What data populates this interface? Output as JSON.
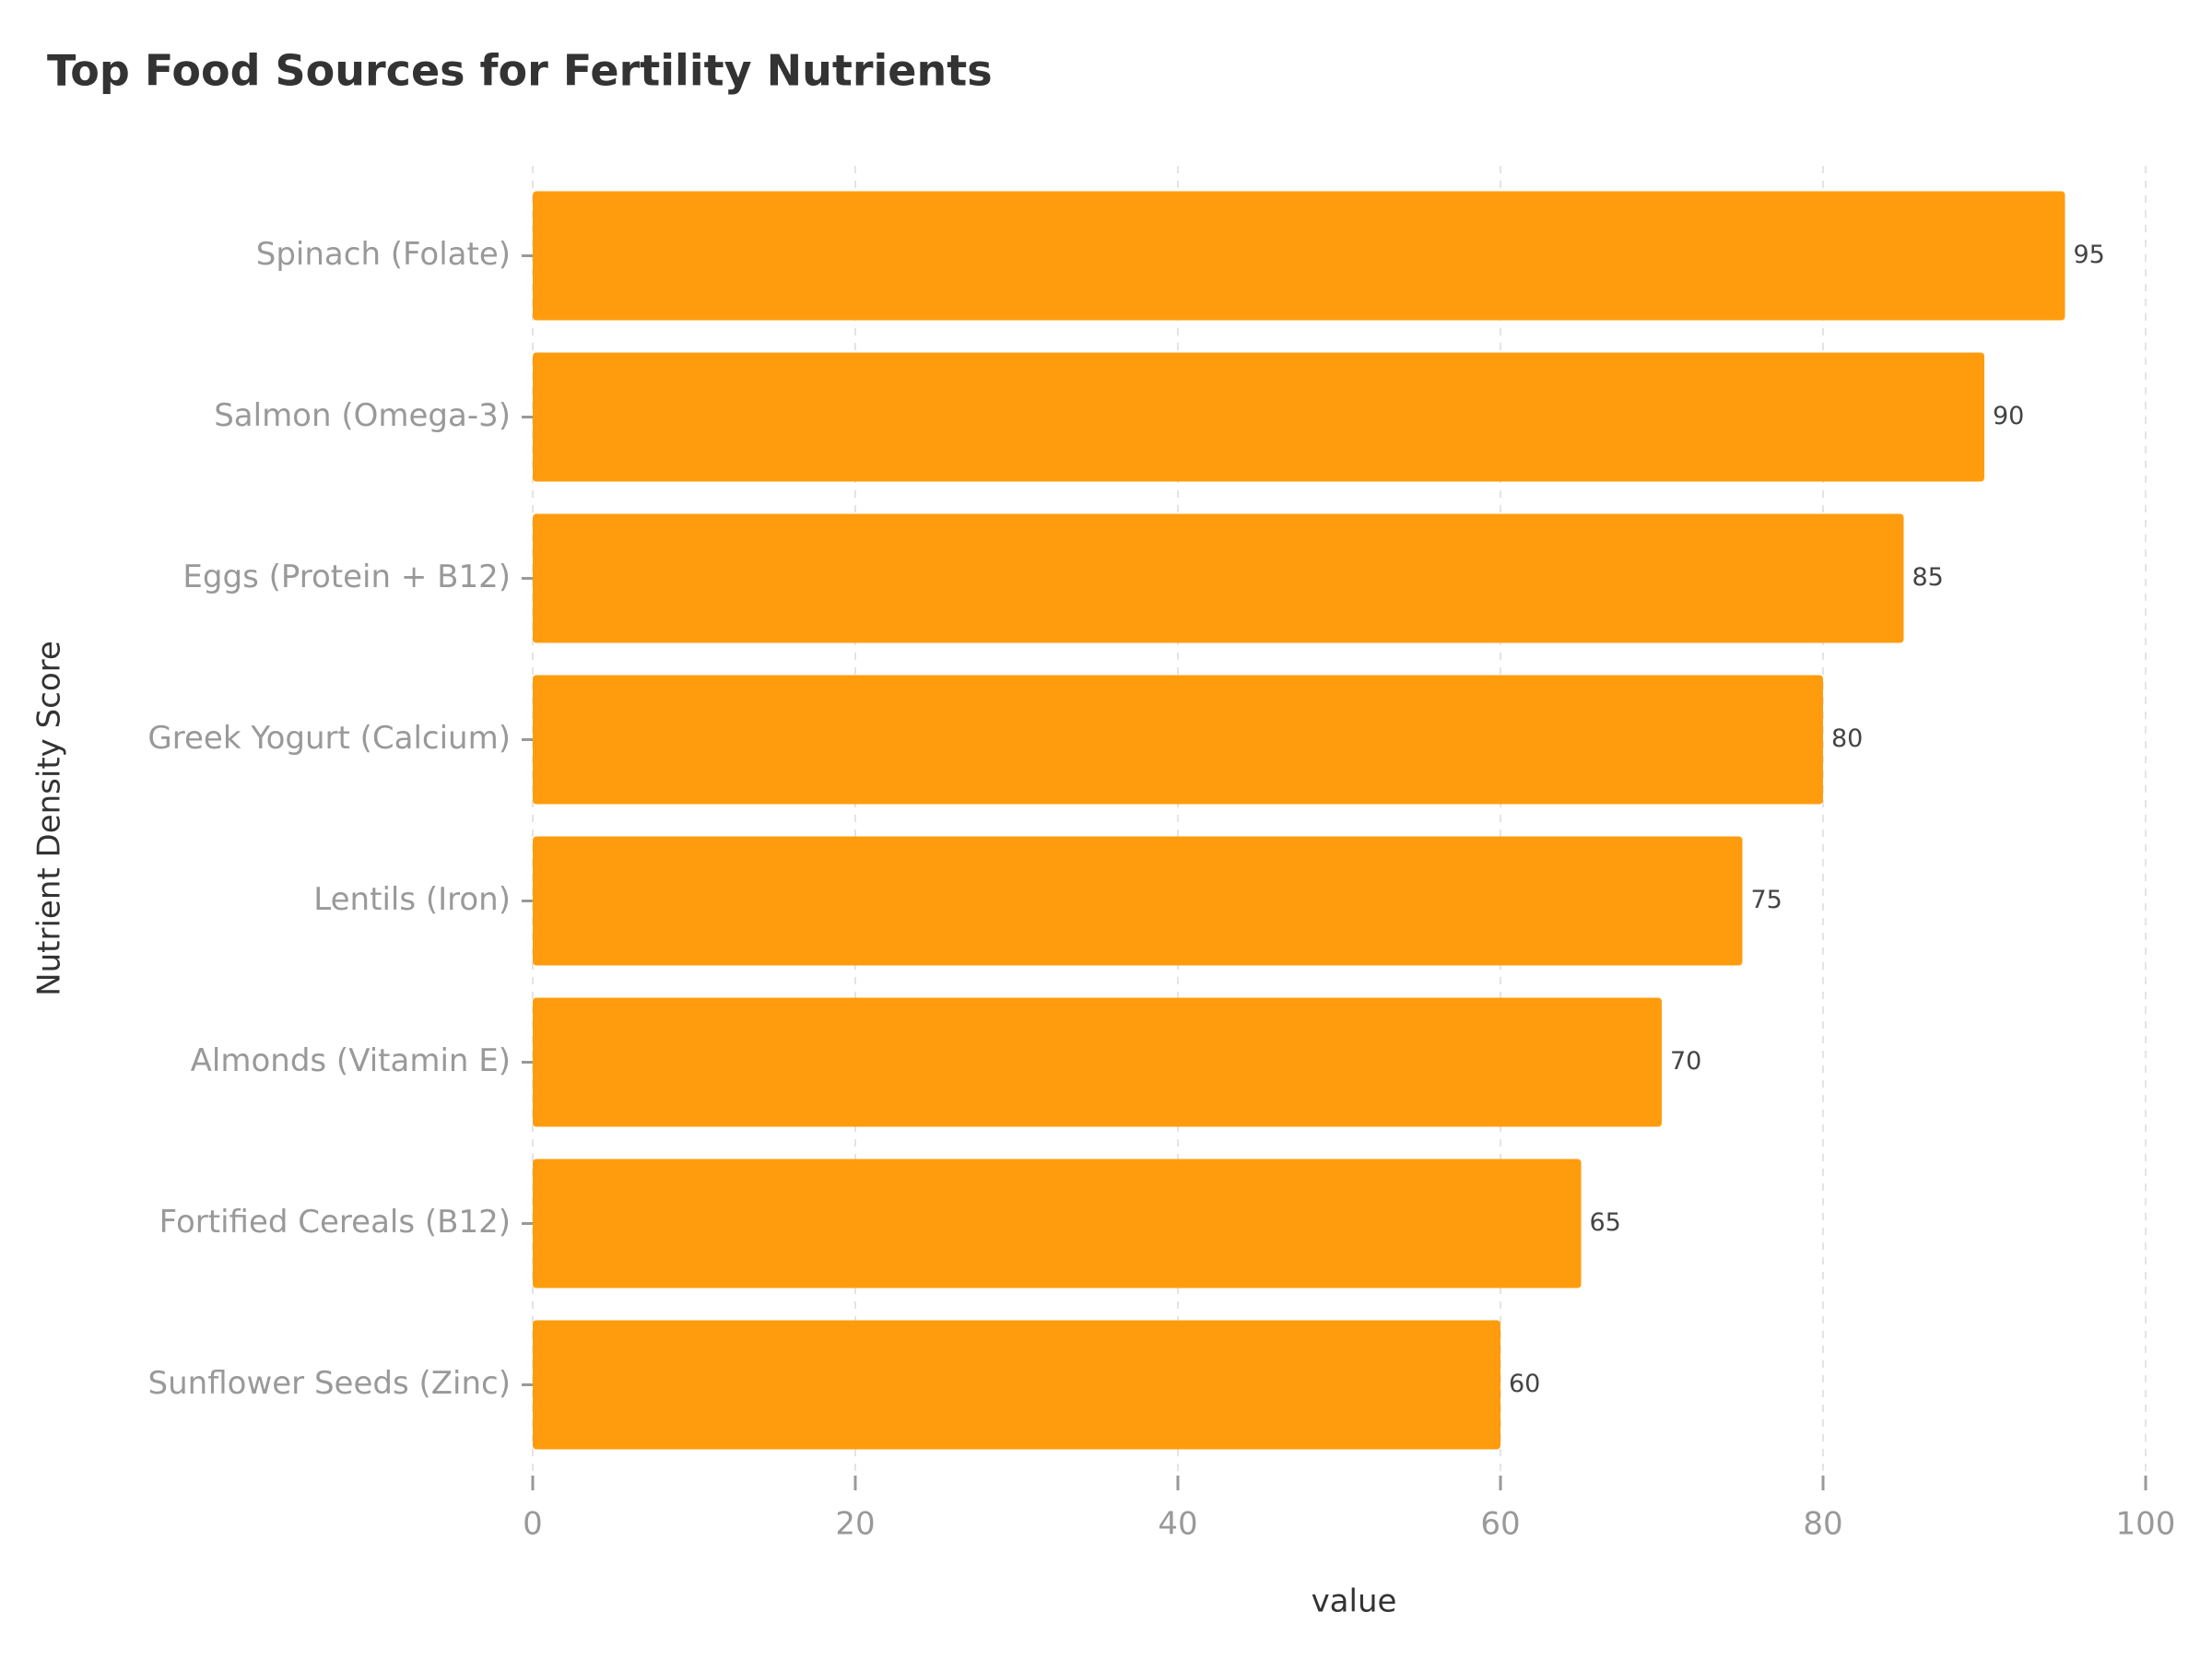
{
  "chart_data": {
    "type": "barh",
    "title": "Top Food Sources for Fertility Nutrients",
    "x_label": "value",
    "y_label": "Nutrient Density Score",
    "categories": [
      "Spinach (Folate)",
      "Salmon (Omega-3)",
      "Eggs (Protein + B12)",
      "Greek Yogurt (Calcium)",
      "Lentils (Iron)",
      "Almonds (Vitamin E)",
      "Fortified Cereals (B12)",
      "Sunflower Seeds (Zinc)"
    ],
    "values": [
      95,
      90,
      85,
      80,
      75,
      70,
      65,
      60
    ],
    "color": "#ff9c0e",
    "xlim": [
      0,
      100
    ],
    "xticks": [
      0,
      20,
      40,
      60,
      80,
      100
    ],
    "grid": true
  }
}
